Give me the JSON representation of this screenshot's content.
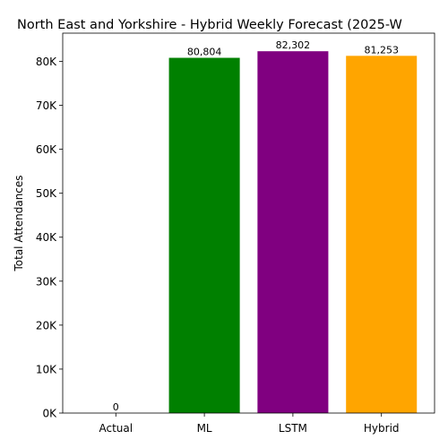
{
  "chart_data": {
    "type": "bar",
    "title": "North East and Yorkshire - Hybrid Weekly Forecast (2025-W",
    "xlabel": "",
    "ylabel": "Total Attendances",
    "categories": [
      "Actual",
      "ML",
      "LSTM",
      "Hybrid"
    ],
    "values": [
      0,
      80804,
      82302,
      81253
    ],
    "value_labels": [
      "0",
      "80,804",
      "82,302",
      "81,253"
    ],
    "colors": [
      "#1f77b4",
      "#008000",
      "#800080",
      "#ffa500"
    ],
    "ylim": [
      0,
      86415
    ],
    "yticks": [
      0,
      10000,
      20000,
      30000,
      40000,
      50000,
      60000,
      70000,
      80000
    ],
    "ytick_labels": [
      "0K",
      "10K",
      "20K",
      "30K",
      "40K",
      "50K",
      "60K",
      "70K",
      "80K"
    ],
    "grid": false,
    "legend": "none"
  }
}
